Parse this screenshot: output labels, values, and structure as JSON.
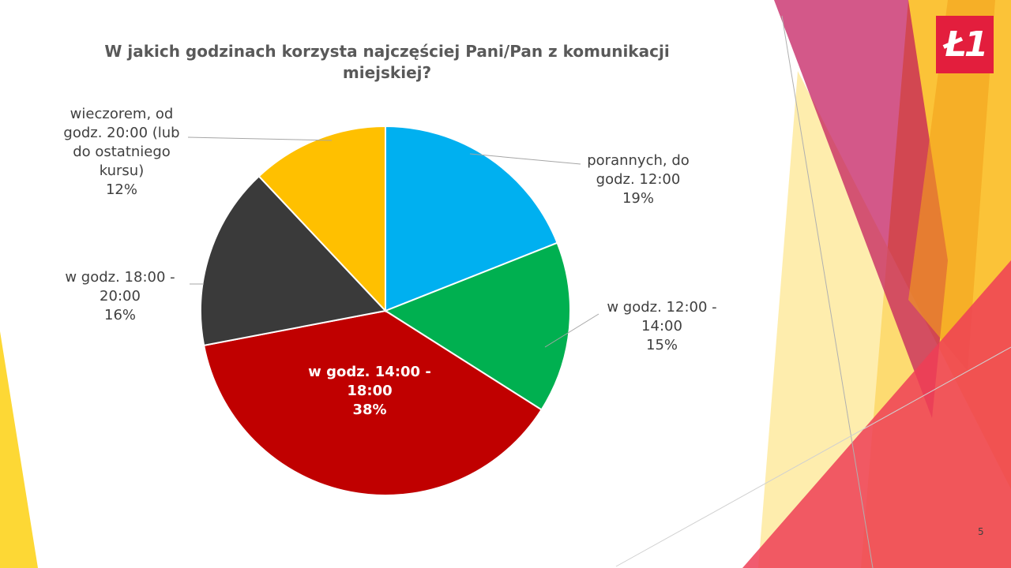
{
  "slide": {
    "page_number": "5",
    "logo_text": "Ł1"
  },
  "chart_data": {
    "type": "pie",
    "title": "W jakich godzinach korzysta najczęściej Pani/Pan z komunikacji miejskiej?",
    "slices": [
      {
        "label_lines": [
          "porannych,  do",
          "godz. 12:00"
        ],
        "percent_label": "19%",
        "value": 19,
        "color": "#00b0f0"
      },
      {
        "label_lines": [
          "w godz. 12:00 -",
          "14:00"
        ],
        "percent_label": "15%",
        "value": 15,
        "color": "#00b050"
      },
      {
        "label_lines": [
          "w godz. 14:00 -",
          "18:00"
        ],
        "percent_label": "38%",
        "value": 38,
        "color": "#c00000"
      },
      {
        "label_lines": [
          "w godz. 18:00 -",
          "20:00"
        ],
        "percent_label": "16%",
        "value": 16,
        "color": "#3a3a3a"
      },
      {
        "label_lines": [
          "wieczorem,  od",
          "godz. 20:00 (lub",
          "do ostatniego",
          "kursu)"
        ],
        "percent_label": "12%",
        "value": 12,
        "color": "#ffc000"
      }
    ]
  }
}
